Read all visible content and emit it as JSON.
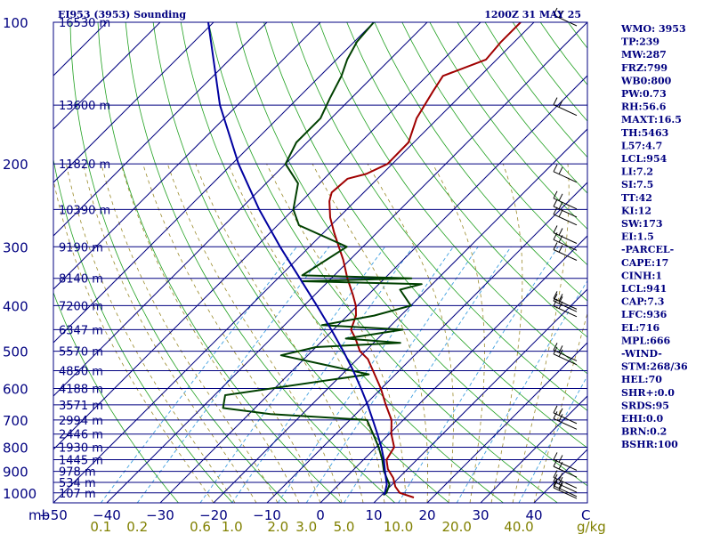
{
  "header": {
    "station": "EI953 (3953) Sounding",
    "time": "1200Z 31 MAY 25"
  },
  "indices": [
    "WMO: 3953",
    "TP:239",
    "MW:287",
    "FRZ:799",
    "WB0:800",
    "PW:0.73",
    "RH:56.6",
    "MAXT:16.5",
    "TH:5463",
    "L57:4.7",
    "LCL:954",
    "LI:7.2",
    "SI:7.5",
    "TT:42",
    "KI:12",
    "SW:173",
    "EI:1.5",
    "-PARCEL-",
    "CAPE:17",
    "CINH:1",
    "LCL:941",
    "CAP:7.3",
    "LFC:936",
    "EL:716",
    "MPL:666",
    "-WIND-",
    "STM:268/36",
    "HEL:70",
    "SHR+:0.0",
    "SRDS:95",
    "EHI:0.0",
    "BRN:0.2",
    "BSHR:100"
  ],
  "chart_data": {
    "type": "skew-t log-p",
    "ylabel": "mb",
    "xlabel": "",
    "pressure_axis": {
      "ticks": [
        100,
        200,
        300,
        400,
        500,
        600,
        700,
        800,
        900,
        1000
      ],
      "range_mb": [
        1050,
        100
      ],
      "scale": "log"
    },
    "temperature_axis": {
      "ticks": [
        -50,
        -40,
        -30,
        -20,
        -10,
        0,
        10,
        20,
        30,
        40
      ],
      "unit": "C",
      "range_at_1050mb": [
        -50,
        50
      ],
      "skew": "45-degree"
    },
    "mixing_ratio_labels": {
      "unit": "g/kg",
      "values": [
        "0.1",
        "0.2",
        "0.6",
        "1.0",
        "2.0",
        "3.0",
        "5.0",
        "10.0",
        "20.0",
        "40.0"
      ]
    },
    "height_labels": [
      {
        "p": 100,
        "label": "16530 m"
      },
      {
        "p": 150,
        "label": "13600 m"
      },
      {
        "p": 200,
        "label": "11820 m"
      },
      {
        "p": 250,
        "label": "10390 m"
      },
      {
        "p": 300,
        "label": "9190 m"
      },
      {
        "p": 350,
        "label": "8140 m"
      },
      {
        "p": 400,
        "label": "7200 m"
      },
      {
        "p": 450,
        "label": "6347 m"
      },
      {
        "p": 500,
        "label": "5570 m"
      },
      {
        "p": 550,
        "label": "4850 m"
      },
      {
        "p": 600,
        "label": "4188 m"
      },
      {
        "p": 650,
        "label": "3571 m"
      },
      {
        "p": 700,
        "label": "2994 m"
      },
      {
        "p": 750,
        "label": "2446 m"
      },
      {
        "p": 800,
        "label": "1930 m"
      },
      {
        "p": 850,
        "label": "1445 m"
      },
      {
        "p": 900,
        "label": "978 m"
      },
      {
        "p": 950,
        "label": "534 m"
      },
      {
        "p": 1000,
        "label": "107 m"
      }
    ],
    "series": [
      {
        "name": "",
        "kind": "temperature",
        "color": "#a00000",
        "points": [
          {
            "p": 1023,
            "t": 16.5
          },
          {
            "p": 1000,
            "t": 13.0
          },
          {
            "p": 970,
            "t": 11.0
          },
          {
            "p": 930,
            "t": 9.0
          },
          {
            "p": 890,
            "t": 6.3
          },
          {
            "p": 850,
            "t": 4.3
          },
          {
            "p": 800,
            "t": 3.4
          },
          {
            "p": 750,
            "t": 0.4
          },
          {
            "p": 700,
            "t": -2.2
          },
          {
            "p": 650,
            "t": -6.1
          },
          {
            "p": 600,
            "t": -10.1
          },
          {
            "p": 550,
            "t": -14.9
          },
          {
            "p": 520,
            "t": -18.0
          },
          {
            "p": 500,
            "t": -21.0
          },
          {
            "p": 470,
            "t": -24.2
          },
          {
            "p": 450,
            "t": -26.7
          },
          {
            "p": 420,
            "t": -28.4
          },
          {
            "p": 400,
            "t": -30.3
          },
          {
            "p": 380,
            "t": -32.8
          },
          {
            "p": 350,
            "t": -37.0
          },
          {
            "p": 320,
            "t": -41.2
          },
          {
            "p": 300,
            "t": -44.5
          },
          {
            "p": 280,
            "t": -48.0
          },
          {
            "p": 260,
            "t": -51.6
          },
          {
            "p": 240,
            "t": -54.8
          },
          {
            "p": 230,
            "t": -56.0
          },
          {
            "p": 215,
            "t": -55.6
          },
          {
            "p": 210,
            "t": -53.0
          },
          {
            "p": 200,
            "t": -50.9
          },
          {
            "p": 180,
            "t": -51.0
          },
          {
            "p": 160,
            "t": -54.0
          },
          {
            "p": 140,
            "t": -56.0
          },
          {
            "p": 130,
            "t": -57.0
          },
          {
            "p": 120,
            "t": -52.0
          },
          {
            "p": 110,
            "t": -52.5
          },
          {
            "p": 100,
            "t": -52.5
          }
        ]
      },
      {
        "name": "",
        "kind": "dewpoint",
        "color": "#004000",
        "points": [
          {
            "p": 1010,
            "t": 10.3
          },
          {
            "p": 1000,
            "t": 10.5
          },
          {
            "p": 960,
            "t": 9.5
          },
          {
            "p": 900,
            "t": 6.0
          },
          {
            "p": 850,
            "t": 3.5
          },
          {
            "p": 800,
            "t": 0.5
          },
          {
            "p": 750,
            "t": -3.0
          },
          {
            "p": 700,
            "t": -6.8
          },
          {
            "p": 680,
            "t": -26.0
          },
          {
            "p": 660,
            "t": -36.0
          },
          {
            "p": 620,
            "t": -38.0
          },
          {
            "p": 560,
            "t": -15.0
          },
          {
            "p": 510,
            "t": -35.0
          },
          {
            "p": 490,
            "t": -30.0
          },
          {
            "p": 480,
            "t": -15.0
          },
          {
            "p": 470,
            "t": -26.0
          },
          {
            "p": 450,
            "t": -17.0
          },
          {
            "p": 440,
            "t": -33.0
          },
          {
            "p": 420,
            "t": -25.0
          },
          {
            "p": 400,
            "t": -20.0
          },
          {
            "p": 370,
            "t": -25.0
          },
          {
            "p": 360,
            "t": -22.0
          },
          {
            "p": 355,
            "t": -45.0
          },
          {
            "p": 350,
            "t": -25.0
          },
          {
            "p": 345,
            "t": -46.0
          },
          {
            "p": 300,
            "t": -43.0
          },
          {
            "p": 270,
            "t": -56.0
          },
          {
            "p": 250,
            "t": -60.0
          },
          {
            "p": 220,
            "t": -64.0
          },
          {
            "p": 200,
            "t": -70.0
          },
          {
            "p": 180,
            "t": -72.0
          },
          {
            "p": 160,
            "t": -72.0
          },
          {
            "p": 145,
            "t": -74.0
          },
          {
            "p": 130,
            "t": -76.0
          },
          {
            "p": 120,
            "t": -78.0
          },
          {
            "p": 110,
            "t": -79.5
          },
          {
            "p": 100,
            "t": -80.0
          }
        ]
      },
      {
        "name": "",
        "kind": "parcel",
        "color": "#0000a0",
        "points": [
          {
            "p": 1010,
            "t": 10.5
          },
          {
            "p": 960,
            "t": 9.0
          },
          {
            "p": 900,
            "t": 6.2
          },
          {
            "p": 850,
            "t": 3.8
          },
          {
            "p": 800,
            "t": 1.0
          },
          {
            "p": 750,
            "t": -2.2
          },
          {
            "p": 700,
            "t": -5.7
          },
          {
            "p": 650,
            "t": -9.5
          },
          {
            "p": 600,
            "t": -13.8
          },
          {
            "p": 550,
            "t": -18.6
          },
          {
            "p": 500,
            "t": -24.1
          },
          {
            "p": 450,
            "t": -30.4
          },
          {
            "p": 400,
            "t": -37.6
          },
          {
            "p": 350,
            "t": -45.9
          },
          {
            "p": 300,
            "t": -55.5
          },
          {
            "p": 250,
            "t": -66.4
          },
          {
            "p": 200,
            "t": -78.8
          },
          {
            "p": 150,
            "t": -93.3
          },
          {
            "p": 100,
            "t": -111.0
          }
        ]
      }
    ],
    "wind_barbs_mb": [
      100,
      155,
      215,
      245,
      255,
      265,
      290,
      300,
      315,
      400,
      405,
      415,
      515,
      525,
      700,
      720,
      880,
      910,
      960,
      980,
      1000,
      1010
    ]
  }
}
